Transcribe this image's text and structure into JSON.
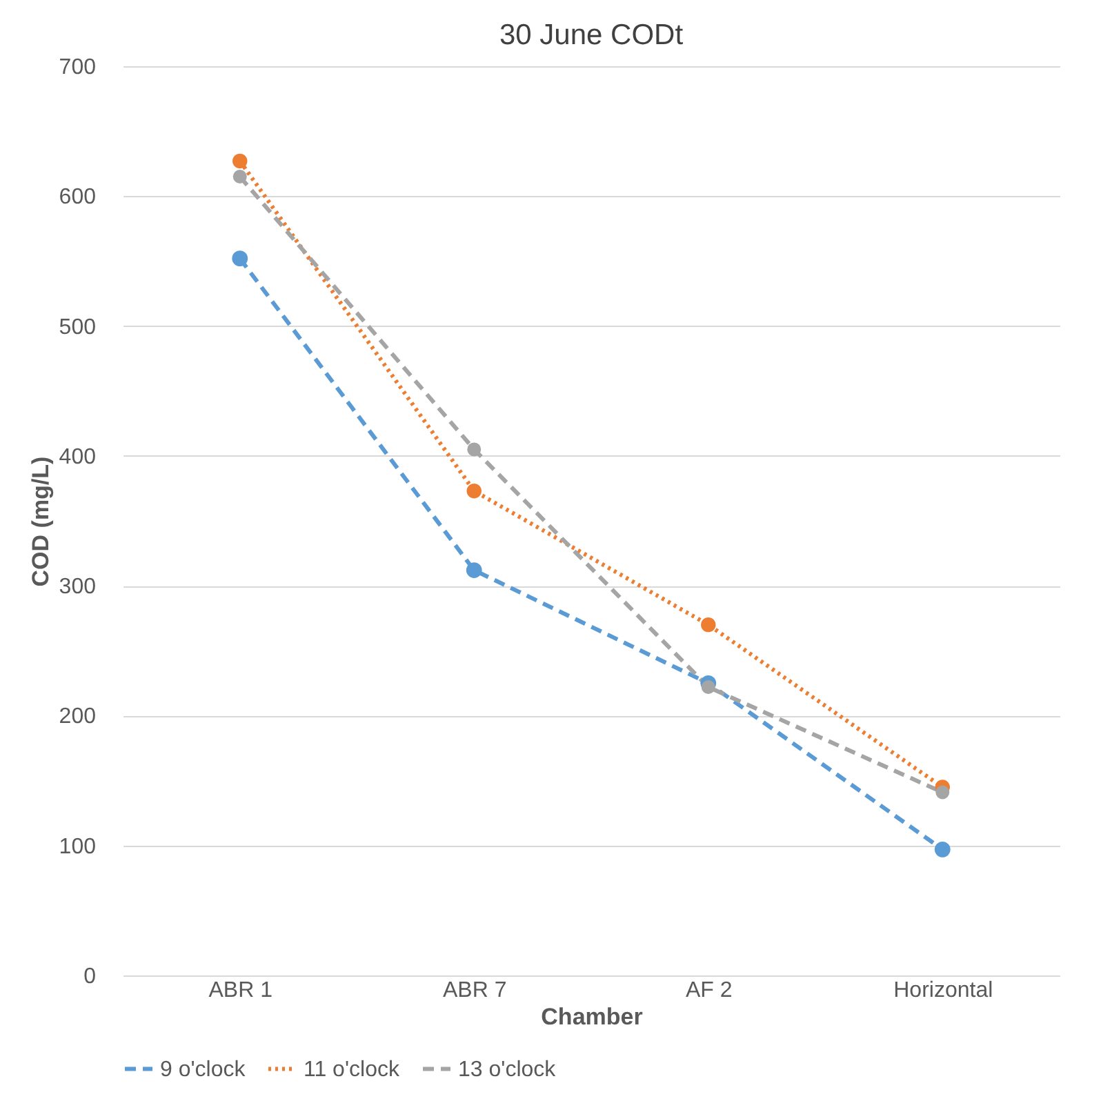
{
  "chart_data": {
    "type": "line",
    "title": "30 June CODt",
    "xlabel": "Chamber",
    "ylabel": "COD (mg/L)",
    "categories": [
      "ABR 1",
      "ABR 7",
      "AF 2",
      "Horizontal"
    ],
    "series": [
      {
        "name": "9 o'clock",
        "color": "#5b9bd5",
        "line_style": "dashed",
        "values": [
          552,
          312,
          225,
          97
        ]
      },
      {
        "name": "11 o'clock",
        "color": "#ed7d31",
        "line_style": "dotted",
        "values": [
          627,
          373,
          270,
          145
        ]
      },
      {
        "name": "13 o'clock",
        "color": "#a5a5a5",
        "line_style": "dashed",
        "values": [
          615,
          405,
          222,
          141
        ]
      }
    ],
    "ylim": [
      0,
      700
    ],
    "yticks": [
      0,
      100,
      200,
      300,
      400,
      500,
      600,
      700
    ],
    "grid": "y",
    "legend": "bottom",
    "marker": "circle"
  }
}
